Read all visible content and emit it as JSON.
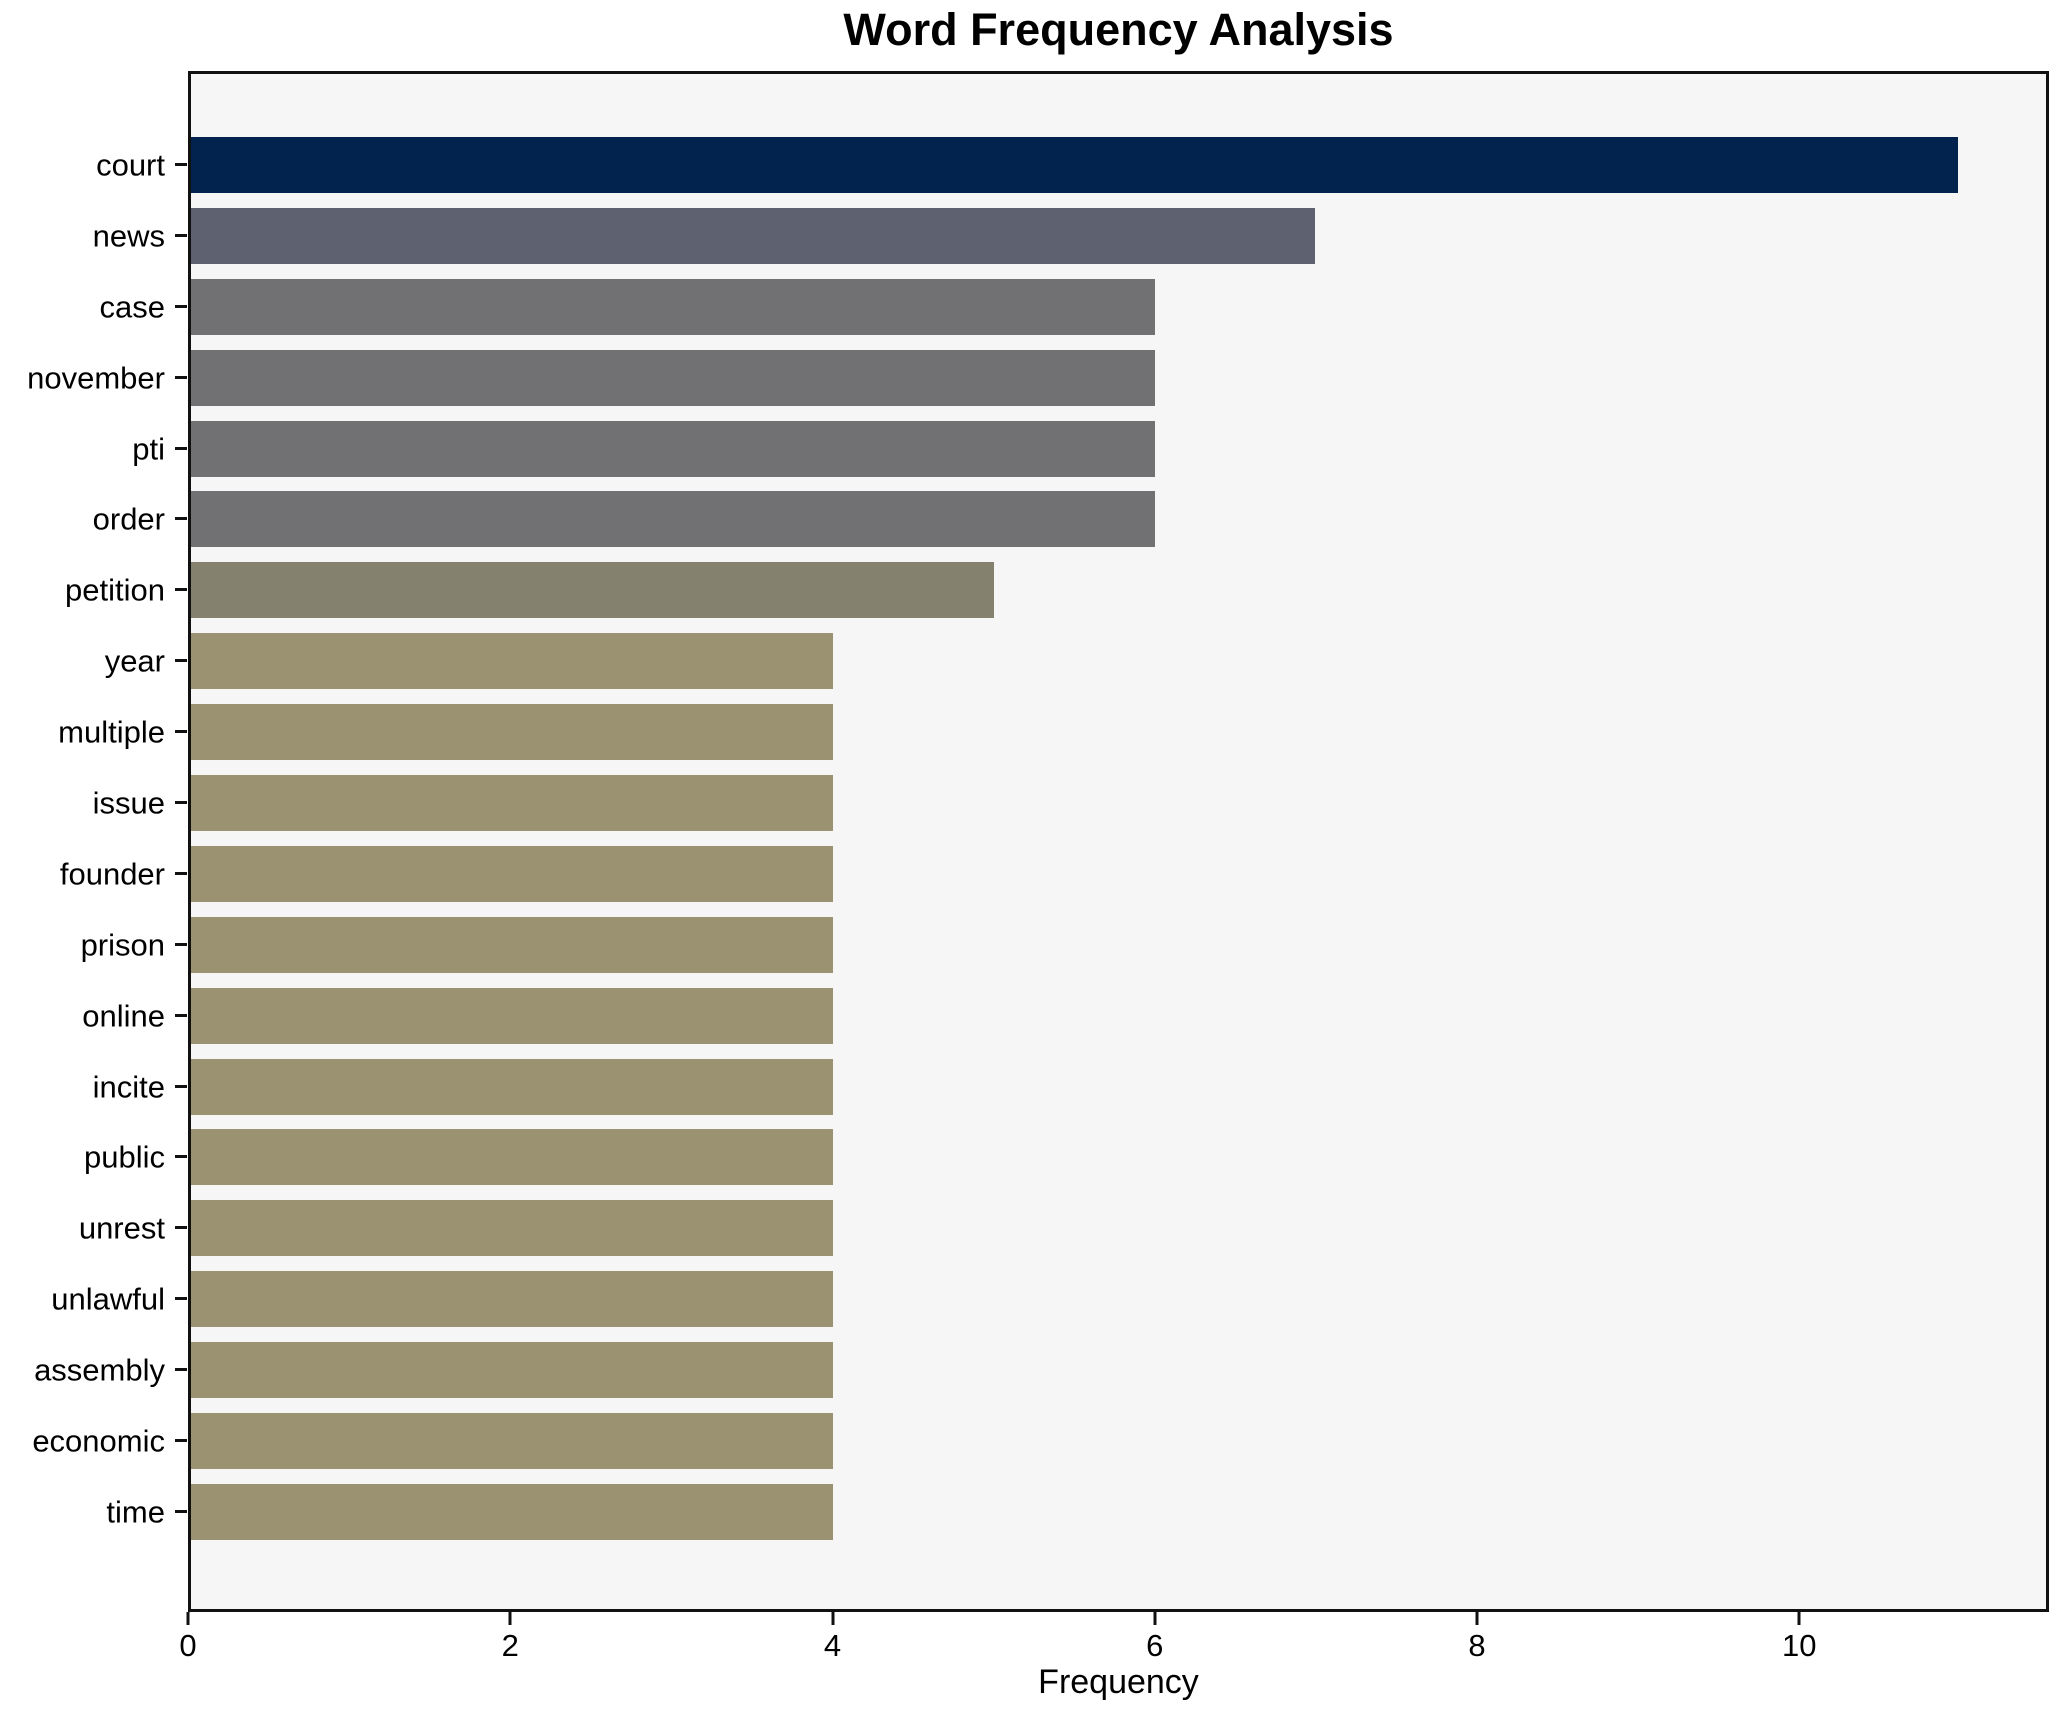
{
  "chart_data": {
    "type": "bar",
    "orientation": "horizontal",
    "title": "Word Frequency Analysis",
    "xlabel": "Frequency",
    "ylabel": "",
    "xlim": [
      0,
      11.55
    ],
    "xticks": [
      0,
      2,
      4,
      6,
      8,
      10
    ],
    "grid": false,
    "legend": "none",
    "plot_background": "#f6f6f6",
    "figure_background": "#ffffff",
    "spine_color": "#111111",
    "categories": [
      "court",
      "news",
      "case",
      "november",
      "pti",
      "order",
      "petition",
      "year",
      "multiple",
      "issue",
      "founder",
      "prison",
      "online",
      "incite",
      "public",
      "unrest",
      "unlawful",
      "assembly",
      "economic",
      "time"
    ],
    "values": [
      11,
      7,
      6,
      6,
      6,
      6,
      5,
      4,
      4,
      4,
      4,
      4,
      4,
      4,
      4,
      4,
      4,
      4,
      4,
      4
    ],
    "bar_colors": [
      "#02234e",
      "#5d6170",
      "#717173",
      "#717173",
      "#717173",
      "#717173",
      "#84816f",
      "#9a9271",
      "#9a9271",
      "#9a9271",
      "#9a9271",
      "#9a9271",
      "#9a9271",
      "#9a9271",
      "#9a9271",
      "#9a9271",
      "#9a9271",
      "#9a9271",
      "#9a9271",
      "#9a9271"
    ]
  }
}
